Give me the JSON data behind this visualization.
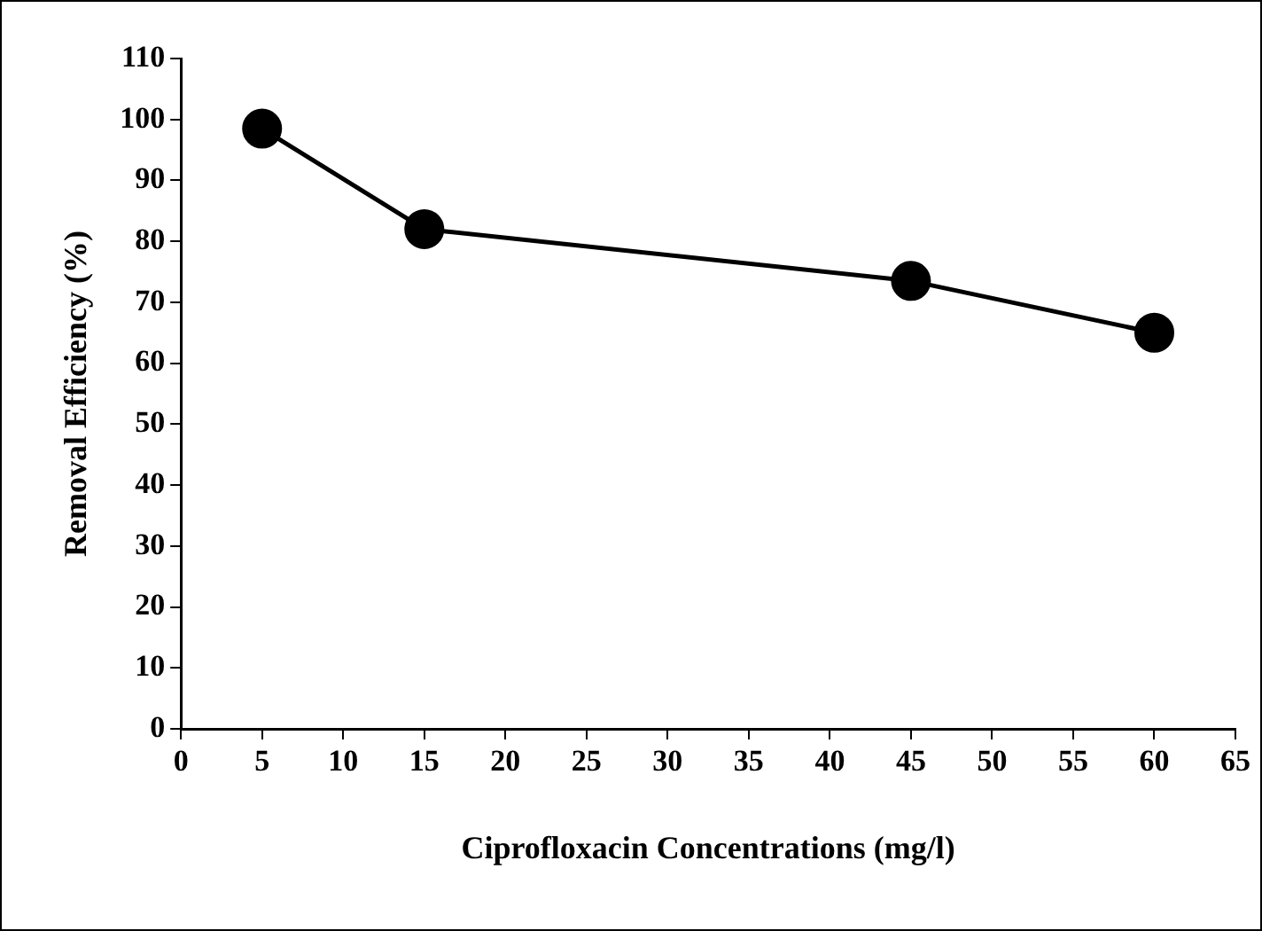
{
  "chart_data": {
    "type": "line",
    "xlabel": "Ciprofloxacin Concentrations (mg/l)",
    "ylabel": "Removal Efficiency (%)",
    "x": [
      5,
      15,
      45,
      60
    ],
    "series": [
      {
        "color": "#000000",
        "values": [
          98.5,
          82,
          73.5,
          65
        ]
      }
    ],
    "xlim": [
      0,
      65
    ],
    "xticks": [
      0,
      5,
      10,
      15,
      20,
      25,
      30,
      35,
      40,
      45,
      50,
      55,
      60,
      65
    ],
    "ylim": [
      0,
      110
    ],
    "yticks": [
      0,
      10,
      20,
      30,
      40,
      50,
      60,
      70,
      80,
      90,
      100,
      110
    ],
    "grid": false,
    "legend": false,
    "marker": "circle",
    "line_style": "solid"
  }
}
